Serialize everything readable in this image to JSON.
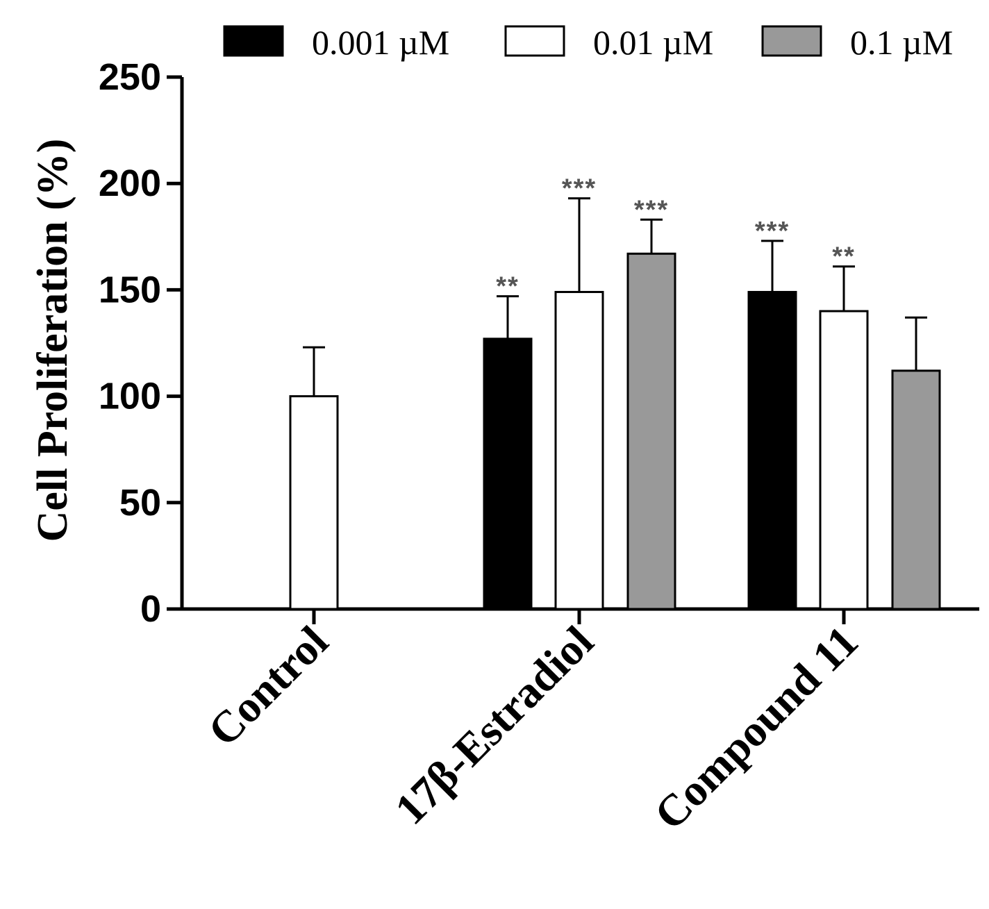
{
  "chart_data": {
    "type": "bar",
    "title": "",
    "xlabel": "",
    "ylabel": "Cell Proliferation (%)",
    "ylim": [
      0,
      250
    ],
    "yticks": [
      "0",
      "50",
      "100",
      "150",
      "200",
      "250"
    ],
    "categories": [
      "Control",
      "17β-Estradiol",
      "Compound 11"
    ],
    "legend": {
      "position": "top-right",
      "entries": [
        {
          "label": "0.001 µM",
          "color": "#000000"
        },
        {
          "label": "0.01 µM",
          "color": "#ffffff"
        },
        {
          "label": "0.1 µM",
          "color": "#999999"
        }
      ]
    },
    "bars": [
      {
        "category": "Control",
        "series": "0.01 µM",
        "value": 100,
        "error": 23,
        "significance": ""
      },
      {
        "category": "17β-Estradiol",
        "series": "0.001 µM",
        "value": 127,
        "error": 20,
        "significance": "**"
      },
      {
        "category": "17β-Estradiol",
        "series": "0.01 µM",
        "value": 149,
        "error": 44,
        "significance": "***"
      },
      {
        "category": "17β-Estradiol",
        "series": "0.1 µM",
        "value": 167,
        "error": 16,
        "significance": "***"
      },
      {
        "category": "Compound 11",
        "series": "0.001 µM",
        "value": 149,
        "error": 24,
        "significance": "***"
      },
      {
        "category": "Compound 11",
        "series": "0.01 µM",
        "value": 140,
        "error": 21,
        "significance": "**"
      },
      {
        "category": "Compound 11",
        "series": "0.1 µM",
        "value": 112,
        "error": 25,
        "significance": ""
      }
    ]
  }
}
